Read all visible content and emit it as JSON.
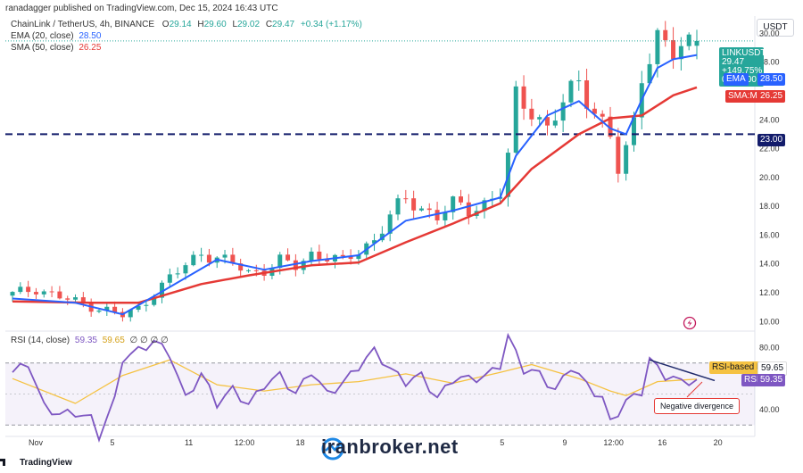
{
  "header": {
    "published": "ranadagger published on TradingView.com, Dec 15, 2024 16:43 UTC"
  },
  "symbol_line": {
    "name": "ChainLink / TetherUS, 4h, BINANCE",
    "o_label": "O",
    "o": "29.14",
    "h_label": "H",
    "h": "29.60",
    "l_label": "L",
    "l": "29.02",
    "c_label": "C",
    "c": "29.47",
    "change": "+0.34 (+1.17%)"
  },
  "ema_line": {
    "label": "EMA (20, close)",
    "value": "28.50"
  },
  "sma_line": {
    "label": "SMA (50, close)",
    "value": "26.25"
  },
  "rsi_line": {
    "label": "RSI (14, close)",
    "value": "59.35",
    "ma_value": "59.65",
    "extra": "∅ ∅ ∅ ∅"
  },
  "currency": "USDT",
  "price_tag": {
    "symbol": "LINKUSDT",
    "price": "29.47",
    "pct": "+149.75%",
    "countdown": "03:17:00"
  },
  "ema_tag": {
    "label": "EMA",
    "value": "28.50"
  },
  "sma_tag": {
    "label": "SMA:MA",
    "value": "26.25"
  },
  "support_tag": "23.00",
  "rsi_ma_tag": {
    "label": "RSI-based MA",
    "value": "59.65"
  },
  "rsi_tag": {
    "label": "RSI",
    "value": "59.35"
  },
  "annotation": "Negative divergence",
  "watermark": "iranbroker.net",
  "tv_brand": "TradingView",
  "colors": {
    "up": "#26a69a",
    "down": "#ef5350",
    "ema": "#2962ff",
    "sma": "#e53935",
    "rsi": "#7e57c2",
    "rsi_ma": "#f5c242",
    "support": "#131c6b"
  },
  "chart_data": [
    {
      "type": "candlestick",
      "title": "ChainLink / TetherUS, 4h, BINANCE",
      "ylim": [
        9.4,
        31.2
      ],
      "y_ticks": [
        10.0,
        12.0,
        14.0,
        16.0,
        18.0,
        20.0,
        22.0,
        24.0,
        28.0,
        30.0
      ],
      "x_ticks": [
        "Nov",
        "5",
        "11",
        "12:00",
        "18",
        "5",
        "9",
        "12:00",
        "16",
        "20"
      ],
      "close_path": [
        [
          0,
          11.9
        ],
        [
          3,
          12.3
        ],
        [
          6,
          11.7
        ],
        [
          9,
          11.2
        ],
        [
          12,
          10.8
        ],
        [
          14,
          10.4
        ],
        [
          16,
          10.9
        ],
        [
          18,
          12.0
        ],
        [
          20,
          13.0
        ],
        [
          22,
          13.9
        ],
        [
          24,
          14.8
        ],
        [
          26,
          14.4
        ],
        [
          28,
          14.0
        ],
        [
          30,
          13.4
        ],
        [
          32,
          13.6
        ],
        [
          34,
          14.2
        ],
        [
          36,
          13.8
        ],
        [
          38,
          14.7
        ],
        [
          40,
          14.5
        ],
        [
          42,
          14.1
        ],
        [
          44,
          14.9
        ],
        [
          46,
          15.7
        ],
        [
          48,
          17.3
        ],
        [
          50,
          18.5
        ],
        [
          52,
          17.9
        ],
        [
          54,
          17.3
        ],
        [
          56,
          18.1
        ],
        [
          58,
          17.8
        ],
        [
          60,
          18.2
        ],
        [
          62,
          18.9
        ],
        [
          63,
          21.3
        ],
        [
          64,
          25.6
        ],
        [
          66,
          24.8
        ],
        [
          68,
          23.3
        ],
        [
          70,
          25.1
        ],
        [
          72,
          26.8
        ],
        [
          74,
          24.6
        ],
        [
          76,
          22.8
        ],
        [
          77,
          20.4
        ],
        [
          78,
          21.8
        ],
        [
          79,
          23.9
        ],
        [
          80,
          27.4
        ],
        [
          82,
          29.6
        ],
        [
          84,
          28.5
        ],
        [
          86,
          29.4
        ],
        [
          87,
          29.47
        ]
      ],
      "ema_20": [
        [
          0,
          11.6
        ],
        [
          8,
          11.3
        ],
        [
          14,
          10.5
        ],
        [
          20,
          12.4
        ],
        [
          26,
          14.3
        ],
        [
          32,
          13.6
        ],
        [
          38,
          14.2
        ],
        [
          44,
          14.6
        ],
        [
          50,
          17.0
        ],
        [
          56,
          17.7
        ],
        [
          62,
          18.6
        ],
        [
          64,
          21.5
        ],
        [
          68,
          24.3
        ],
        [
          72,
          25.3
        ],
        [
          76,
          23.4
        ],
        [
          78,
          23.0
        ],
        [
          80,
          25.4
        ],
        [
          82,
          27.6
        ],
        [
          84,
          28.2
        ],
        [
          87,
          28.5
        ]
      ],
      "sma_50": [
        [
          0,
          11.4
        ],
        [
          10,
          11.3
        ],
        [
          16,
          11.3
        ],
        [
          24,
          12.6
        ],
        [
          30,
          13.2
        ],
        [
          38,
          13.9
        ],
        [
          44,
          14.1
        ],
        [
          50,
          15.5
        ],
        [
          56,
          16.8
        ],
        [
          62,
          18.2
        ],
        [
          66,
          20.6
        ],
        [
          72,
          23.0
        ],
        [
          76,
          24.1
        ],
        [
          80,
          24.3
        ],
        [
          84,
          25.7
        ],
        [
          87,
          26.25
        ]
      ],
      "support_level": 23.0,
      "last": {
        "open": 29.14,
        "high": 29.6,
        "low": 29.02,
        "close": 29.47
      }
    },
    {
      "type": "line",
      "title": "RSI (14, close)",
      "ylim": [
        25,
        90
      ],
      "y_ticks": [
        40.0,
        80.0
      ],
      "band": [
        30,
        70
      ],
      "rsi": [
        [
          0,
          64
        ],
        [
          2,
          70
        ],
        [
          4,
          42
        ],
        [
          6,
          37
        ],
        [
          8,
          38
        ],
        [
          10,
          34
        ],
        [
          11,
          23
        ],
        [
          13,
          46
        ],
        [
          14,
          73
        ],
        [
          16,
          78
        ],
        [
          18,
          84
        ],
        [
          20,
          76
        ],
        [
          22,
          47
        ],
        [
          24,
          63
        ],
        [
          26,
          44
        ],
        [
          28,
          53
        ],
        [
          30,
          43
        ],
        [
          32,
          56
        ],
        [
          34,
          62
        ],
        [
          36,
          50
        ],
        [
          38,
          65
        ],
        [
          40,
          50
        ],
        [
          42,
          57
        ],
        [
          44,
          68
        ],
        [
          46,
          78
        ],
        [
          48,
          66
        ],
        [
          50,
          58
        ],
        [
          52,
          62
        ],
        [
          54,
          47
        ],
        [
          56,
          60
        ],
        [
          58,
          60
        ],
        [
          60,
          61
        ],
        [
          62,
          69
        ],
        [
          63,
          87
        ],
        [
          65,
          66
        ],
        [
          67,
          63
        ],
        [
          69,
          52
        ],
        [
          71,
          68
        ],
        [
          73,
          56
        ],
        [
          75,
          47
        ],
        [
          76,
          32
        ],
        [
          78,
          45
        ],
        [
          80,
          52
        ],
        [
          81,
          72
        ],
        [
          83,
          62
        ],
        [
          85,
          58
        ],
        [
          87,
          59.35
        ]
      ],
      "rsi_ma": [
        [
          0,
          60
        ],
        [
          8,
          44
        ],
        [
          14,
          62
        ],
        [
          20,
          72
        ],
        [
          26,
          56
        ],
        [
          32,
          52
        ],
        [
          38,
          56
        ],
        [
          44,
          58
        ],
        [
          50,
          63
        ],
        [
          56,
          57
        ],
        [
          62,
          64
        ],
        [
          66,
          69
        ],
        [
          72,
          60
        ],
        [
          76,
          52
        ],
        [
          78,
          49
        ],
        [
          82,
          58
        ],
        [
          87,
          59.65
        ]
      ],
      "divergence_line": [
        [
          81,
          72
        ],
        [
          87,
          61
        ]
      ]
    }
  ]
}
